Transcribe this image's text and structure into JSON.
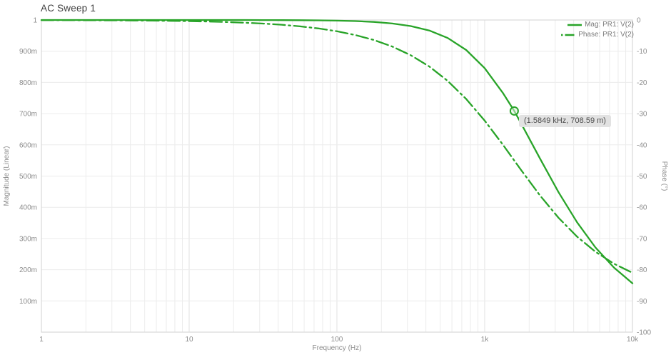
{
  "title": "AC Sweep 1",
  "chart_data": {
    "type": "line",
    "title": "AC Sweep 1",
    "grid": true,
    "legend_position": "top-right",
    "x_axis": {
      "label": "Frequency (Hz)",
      "scale": "log",
      "min": 1,
      "max": 10000,
      "tick_values": [
        1,
        10,
        100,
        1000,
        10000
      ],
      "tick_labels": [
        "1",
        "10",
        "100",
        "1k",
        "10k"
      ]
    },
    "y_left": {
      "label": "Magnitude (Linear)",
      "min": 0,
      "max": 1,
      "tick_values": [
        1,
        0.9,
        0.8,
        0.7,
        0.6,
        0.5,
        0.4,
        0.3,
        0.2,
        0.1
      ],
      "tick_labels": [
        "1",
        "900m",
        "800m",
        "700m",
        "600m",
        "500m",
        "400m",
        "300m",
        "200m",
        "100m"
      ]
    },
    "y_right": {
      "label": "Phase (°)",
      "min": -100,
      "max": 0,
      "tick_values": [
        0,
        -10,
        -20,
        -30,
        -40,
        -50,
        -60,
        -70,
        -80,
        -90,
        -100
      ],
      "tick_labels": [
        "0",
        "-10",
        "-20",
        "-30",
        "-40",
        "-50",
        "-60",
        "-70",
        "-80",
        "-90",
        "-100"
      ]
    },
    "series": [
      {
        "name": "Mag: PR1: V(2)",
        "axis": "left",
        "line_style": "solid",
        "x": [
          1,
          1.33,
          1.78,
          2.37,
          3.16,
          4.22,
          5.62,
          7.5,
          10,
          13.3,
          17.8,
          23.7,
          31.6,
          42.2,
          56.2,
          75,
          100,
          133,
          178,
          237,
          316,
          422,
          562,
          750,
          1000,
          1334,
          1585,
          1778,
          2371,
          3162,
          4217,
          5623,
          7499,
          10000
        ],
        "y": [
          1,
          1,
          1,
          1,
          1,
          1,
          1,
          1,
          1,
          1,
          0.9999,
          0.9999,
          0.9998,
          0.9996,
          0.9994,
          0.9989,
          0.998,
          0.9965,
          0.9938,
          0.9889,
          0.9806,
          0.9664,
          0.9424,
          0.904,
          0.8457,
          0.765,
          0.7086,
          0.6656,
          0.5557,
          0.4481,
          0.3519,
          0.2712,
          0.2068,
          0.1565
        ]
      },
      {
        "name": "Phase: PR1: V(2)",
        "axis": "right",
        "line_style": "dash-dot",
        "x": [
          1,
          1.33,
          1.78,
          2.37,
          3.16,
          4.22,
          5.62,
          7.5,
          10,
          13.3,
          17.8,
          23.7,
          31.6,
          42.2,
          56.2,
          75,
          100,
          133,
          178,
          237,
          316,
          422,
          562,
          750,
          1000,
          1334,
          1585,
          1778,
          2371,
          3162,
          4217,
          5623,
          7499,
          10000
        ],
        "y": [
          -0.04,
          -0.05,
          -0.06,
          -0.09,
          -0.11,
          -0.15,
          -0.2,
          -0.27,
          -0.36,
          -0.48,
          -0.64,
          -0.86,
          -1.14,
          -1.52,
          -2.03,
          -2.71,
          -3.61,
          -4.81,
          -6.4,
          -8.51,
          -11.28,
          -14.9,
          -19.53,
          -25.32,
          -32.24,
          -40.07,
          -45.0,
          -48.29,
          -56.24,
          -63.38,
          -69.4,
          -74.26,
          -78.07,
          -80.99
        ]
      }
    ],
    "marker": {
      "series": "Mag: PR1: V(2)",
      "x": 1584.9,
      "y": 0.70859,
      "label": "(1.5849 kHz, 708.59 m)"
    },
    "colors": {
      "series": "#29a429",
      "grid_minor": "#ececec",
      "grid_major": "#e2e2e2",
      "frame": "#d8d8d8",
      "tick_text": "#8c8c8c",
      "title_text": "#3f3f3f",
      "legend_text": "#7b7b7b",
      "tooltip_bg": "#e2e2e2",
      "tooltip_text": "#4d4d4d",
      "marker_fill": "#ddf3dd"
    }
  }
}
